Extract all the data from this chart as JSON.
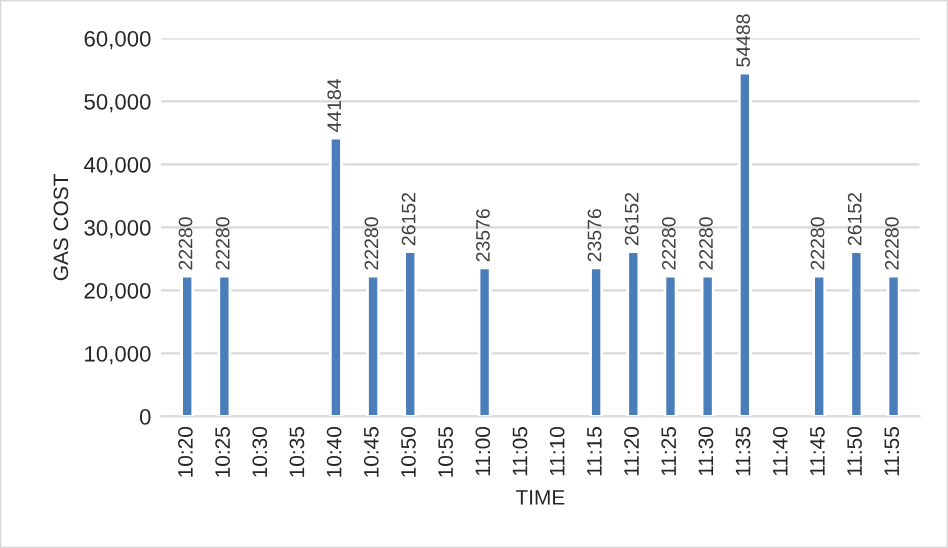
{
  "chart_data": {
    "type": "bar",
    "xlabel": "TIME",
    "ylabel": "GAS COST",
    "categories": [
      "10:20",
      "10:25",
      "10:30",
      "10:35",
      "10:40",
      "10:45",
      "10:50",
      "10:55",
      "11:00",
      "11:05",
      "11:10",
      "11:15",
      "11:20",
      "11:25",
      "11:30",
      "11:35",
      "11:40",
      "11:45",
      "11:50",
      "11:55"
    ],
    "values": [
      22280,
      22280,
      null,
      null,
      44184,
      22280,
      26152,
      null,
      23576,
      null,
      null,
      23576,
      26152,
      22280,
      22280,
      54488,
      null,
      22280,
      26152,
      22280
    ],
    "color": "#4a7ebb",
    "ylim": [
      0,
      60000
    ],
    "yticks": [
      0,
      {
        "value": 10000,
        "label": "10,000"
      },
      {
        "value": 20000,
        "label": "20,000"
      },
      {
        "value": 30000,
        "label": "30,000"
      },
      {
        "value": 40000,
        "label": "40,000"
      },
      {
        "value": 50000,
        "label": "50,000"
      },
      {
        "value": 60000,
        "label": "60,000"
      }
    ],
    "grid": "y",
    "data_labels": true,
    "legend": false
  }
}
